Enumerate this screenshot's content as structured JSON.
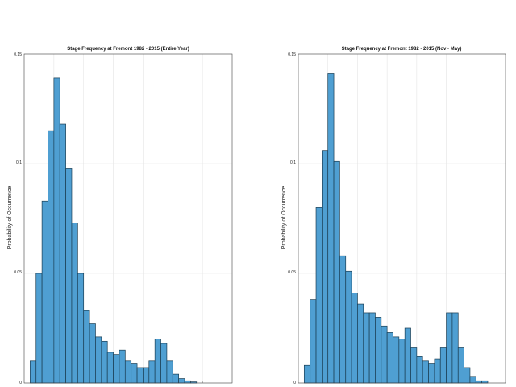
{
  "chart_data": [
    {
      "type": "bar",
      "title": "Stage Frequency at Fremont 1982 - 2015 (Entire Year)",
      "xlabel": "",
      "ylabel": "Probability of Occurrence",
      "ylim": [
        0,
        0.15
      ],
      "yticks": [
        "0",
        "0.05",
        "0.1",
        "0.15"
      ],
      "grid": true,
      "bin_count": 35,
      "values": [
        0.0,
        0.01,
        0.05,
        0.083,
        0.115,
        0.139,
        0.118,
        0.098,
        0.073,
        0.05,
        0.033,
        0.027,
        0.021,
        0.019,
        0.014,
        0.013,
        0.015,
        0.01,
        0.009,
        0.007,
        0.007,
        0.01,
        0.02,
        0.018,
        0.01,
        0.004,
        0.002,
        0.001,
        0.0005,
        0.0,
        0.0,
        0.0,
        0.0,
        0.0,
        0.0
      ],
      "color": "#4f9fd2",
      "edge_color": "#1a3d52"
    },
    {
      "type": "bar",
      "title": "Stage Frequency at Fremont 1982 - 2015 (Nov - May)",
      "xlabel": "",
      "ylabel": "Probability of Occurrence",
      "ylim": [
        0,
        0.15
      ],
      "yticks": [
        "0",
        "0.05",
        "0.1",
        "0.15"
      ],
      "grid": true,
      "bin_count": 35,
      "values": [
        0.0,
        0.008,
        0.038,
        0.08,
        0.106,
        0.141,
        0.101,
        0.058,
        0.051,
        0.041,
        0.036,
        0.032,
        0.032,
        0.03,
        0.026,
        0.023,
        0.021,
        0.02,
        0.025,
        0.016,
        0.012,
        0.01,
        0.009,
        0.011,
        0.016,
        0.032,
        0.032,
        0.016,
        0.007,
        0.003,
        0.001,
        0.001,
        0.0,
        0.0,
        0.0
      ],
      "color": "#4f9fd2",
      "edge_color": "#1a3d52"
    }
  ]
}
